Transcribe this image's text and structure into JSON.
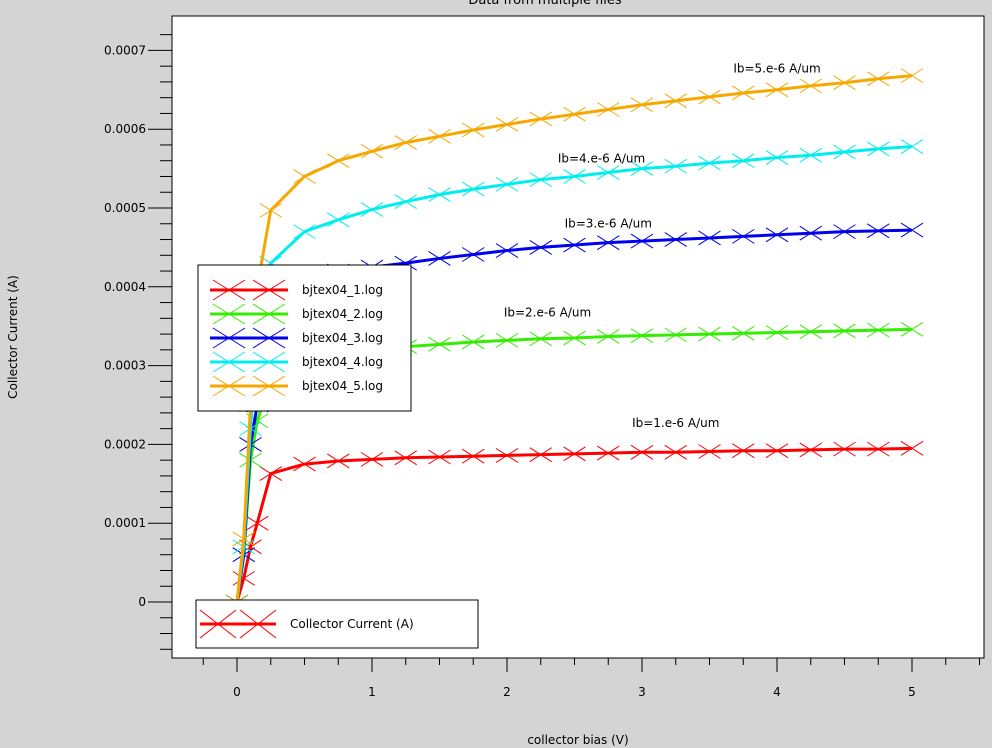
{
  "chart_data": {
    "type": "line",
    "title": "Data from multiple files",
    "xlabel": "collector bias (V)",
    "ylabel": "Collector Current (A)",
    "xlim": [
      -0.5,
      5.5
    ],
    "ylim": [
      -7e-05,
      0.00074
    ],
    "x_ticks": [
      0,
      1,
      2,
      3,
      4,
      5
    ],
    "y_ticks": [
      0,
      0.0001,
      0.0002,
      0.0003,
      0.0004,
      0.0005,
      0.0006,
      0.0007
    ],
    "x_tick_labels": [
      "0",
      "1",
      "2",
      "3",
      "4",
      "5"
    ],
    "y_tick_labels": [
      "0",
      "0.0001",
      "0.0002",
      "0.0003",
      "0.0004",
      "0.0005",
      "0.0006",
      "0.0007"
    ],
    "grid": false,
    "legend_placement": "center-left",
    "marker": "x",
    "x": [
      0,
      0.05,
      0.1,
      0.15,
      0.25,
      0.5,
      0.75,
      1.0,
      1.25,
      1.5,
      1.75,
      2.0,
      2.25,
      2.5,
      2.75,
      3.0,
      3.25,
      3.5,
      3.75,
      4.0,
      4.25,
      4.5,
      4.75,
      5.0
    ],
    "series": [
      {
        "name": "bjtex04_1.log",
        "color": "#ff0000",
        "values": [
          0,
          3e-05,
          7e-05,
          0.0001,
          0.000163,
          0.000175,
          0.000179,
          0.000181,
          0.000183,
          0.000184,
          0.000185,
          0.000186,
          0.000187,
          0.000188,
          0.000189,
          0.00019,
          0.00019,
          0.000191,
          0.000192,
          0.000192,
          0.000193,
          0.000194,
          0.000194,
          0.000195
        ]
      },
      {
        "name": "bjtex04_2.log",
        "color": "#33ee00",
        "values": [
          0,
          6e-05,
          0.00018,
          0.00023,
          0.00028,
          0.000307,
          0.000315,
          0.00032,
          0.000324,
          0.000327,
          0.00033,
          0.000332,
          0.000334,
          0.000335,
          0.000337,
          0.000338,
          0.000339,
          0.00034,
          0.000341,
          0.000342,
          0.000343,
          0.000344,
          0.000345,
          0.000346
        ]
      },
      {
        "name": "bjtex04_3.log",
        "color": "#0000ee",
        "values": [
          0,
          6e-05,
          0.0002,
          0.00025,
          0.00036,
          0.00041,
          0.00042,
          0.000425,
          0.00043,
          0.000436,
          0.000441,
          0.000446,
          0.00045,
          0.000453,
          0.000456,
          0.000458,
          0.00046,
          0.000462,
          0.000464,
          0.000466,
          0.000468,
          0.00047,
          0.000471,
          0.000472
        ]
      },
      {
        "name": "bjtex04_4.log",
        "color": "#00eeee",
        "values": [
          0,
          7e-05,
          0.00022,
          0.00034,
          0.00043,
          0.00047,
          0.000485,
          0.000498,
          0.000508,
          0.000517,
          0.000524,
          0.00053,
          0.000536,
          0.00054,
          0.000545,
          0.00055,
          0.000553,
          0.000557,
          0.00056,
          0.000564,
          0.000567,
          0.000571,
          0.000575,
          0.000578
        ]
      },
      {
        "name": "bjtex04_5.log",
        "color": "#f5a800",
        "values": [
          0,
          8e-05,
          0.00025,
          0.0004,
          0.000497,
          0.00054,
          0.00056,
          0.000572,
          0.000583,
          0.000591,
          0.000599,
          0.000606,
          0.000613,
          0.000619,
          0.000625,
          0.000631,
          0.000636,
          0.000641,
          0.000646,
          0.00065,
          0.000655,
          0.000659,
          0.000664,
          0.000668
        ]
      }
    ],
    "annotations": [
      {
        "text": "Ib=5.e-6 A/um",
        "x": 4.0,
        "y": 0.000672
      },
      {
        "text": "Ib=4.e-6 A/um",
        "x": 2.7,
        "y": 0.000558
      },
      {
        "text": "Ib=3.e-6 A/um",
        "x": 2.75,
        "y": 0.000475
      },
      {
        "text": "Ib=2.e-6 A/um",
        "x": 2.3,
        "y": 0.000362
      },
      {
        "text": "Ib=1.e-6 A/um",
        "x": 3.25,
        "y": 0.000222
      }
    ],
    "secondary_legend": {
      "label": "Collector Current (A)",
      "color": "#ff0000",
      "placement": "bottom-left"
    }
  }
}
